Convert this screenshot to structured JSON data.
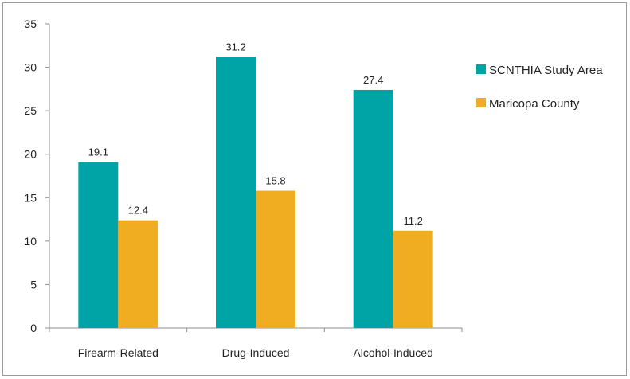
{
  "chart_data": {
    "type": "bar",
    "categories": [
      "Firearm-Related",
      "Drug-Induced",
      "Alcohol-Induced"
    ],
    "series": [
      {
        "name": "SCNTHIA Study Area",
        "values": [
          19.1,
          31.2,
          27.4
        ],
        "color": "#00A3A6"
      },
      {
        "name": "Maricopa County",
        "values": [
          12.4,
          15.8,
          11.2
        ],
        "color": "#F0AD22"
      }
    ],
    "data_labels": [
      [
        "19.1",
        "31.2",
        "27.4"
      ],
      [
        "12.4",
        "15.8",
        "11.2"
      ]
    ],
    "yticks": [
      "0",
      "5",
      "10",
      "15",
      "20",
      "25",
      "30",
      "35"
    ],
    "ylim": [
      0,
      35
    ],
    "grid": false,
    "legend_position": "right"
  }
}
